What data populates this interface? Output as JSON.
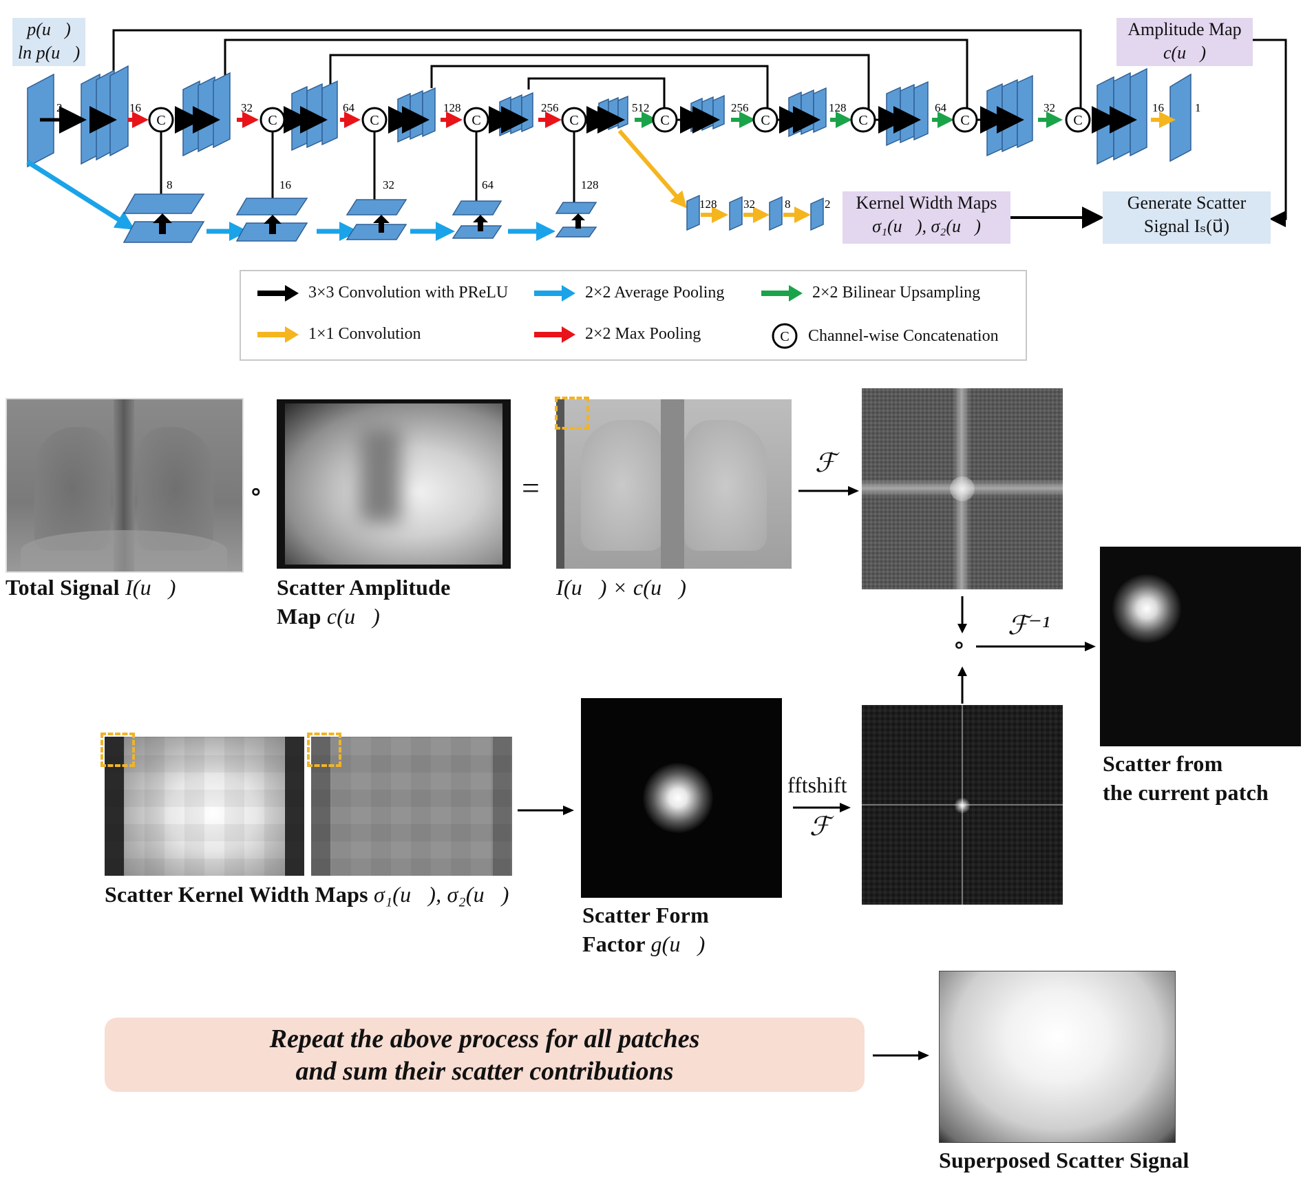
{
  "network": {
    "input_label_line1": "p(u⃗)",
    "input_label_line2": "ln p(u⃗)",
    "amplitude_map_line1": "Amplitude Map",
    "amplitude_map_line2": "c(u⃗)",
    "kernel_maps_line1": "Kernel Width Maps",
    "kernel_maps_line2": "σ₁(u⃗), σ₂(u⃗)",
    "generate_line1": "Generate Scatter",
    "generate_line2": "Signal Iₛ(u⃗)",
    "channel_numbers": {
      "input": "2",
      "enc": [
        "16",
        "32",
        "64",
        "128",
        "256",
        "512"
      ],
      "dec": [
        "256",
        "128",
        "64",
        "32",
        "16",
        "1"
      ],
      "pool_branch": [
        "8",
        "16",
        "32",
        "64",
        "128"
      ],
      "kernel_branch": [
        "128",
        "32",
        "8",
        "2"
      ]
    },
    "concat_symbol": "C"
  },
  "legend": {
    "items": [
      {
        "label": "3×3 Convolution with PReLU",
        "color": "#000000"
      },
      {
        "label": "2×2 Average Pooling",
        "color": "#1aa3e8"
      },
      {
        "label": "2×2 Bilinear Upsampling",
        "color": "#1ba34a"
      },
      {
        "label": "1×1 Convolution",
        "color": "#f5b51e"
      },
      {
        "label": "2×2 Max Pooling",
        "color": "#e8141a"
      },
      {
        "label": "Channel-wise Concatenation",
        "color": "#000000"
      }
    ],
    "concat_symbol": "C"
  },
  "process": {
    "total_signal_bold": "Total Signal ",
    "total_signal_math": "I(u⃗)",
    "amplitude_bold_l1": "Scatter Amplitude",
    "amplitude_bold_l2": "Map ",
    "amplitude_math": "c(u⃗)",
    "product_math": "I(u⃗) × c(u⃗)",
    "op_hadamard": "∘",
    "op_equals": "=",
    "fourier": "ℱ",
    "inverse_fourier": "ℱ⁻¹",
    "fftshift": "fftshift",
    "kernel_bold": "Scatter Kernel Width Maps ",
    "kernel_math": "σ₁(u⃗), σ₂(u⃗)",
    "form_factor_l1": "Scatter Form",
    "form_factor_l2": "Factor ",
    "form_factor_math": "g(u⃗)",
    "patch_l1": "Scatter from",
    "patch_l2": "the current patch",
    "repeat_l1": "Repeat the above process for all patches",
    "repeat_l2": "and sum their scatter contributions",
    "superposed": "Superposed Scatter Signal"
  },
  "colors": {
    "block_blue": "#5b9bd5",
    "block_edge": "#2f5f95",
    "black_arrow": "#000000",
    "avgpool": "#1aa3e8",
    "upsample": "#1ba34a",
    "conv1x1": "#f5b51e",
    "maxpool": "#e8141a",
    "label_blue_bg": "#d9e6f4",
    "label_purple_bg": "#e3d6ef",
    "repeat_bg": "#f7ddd2",
    "patch_marker": "#f0b429"
  }
}
